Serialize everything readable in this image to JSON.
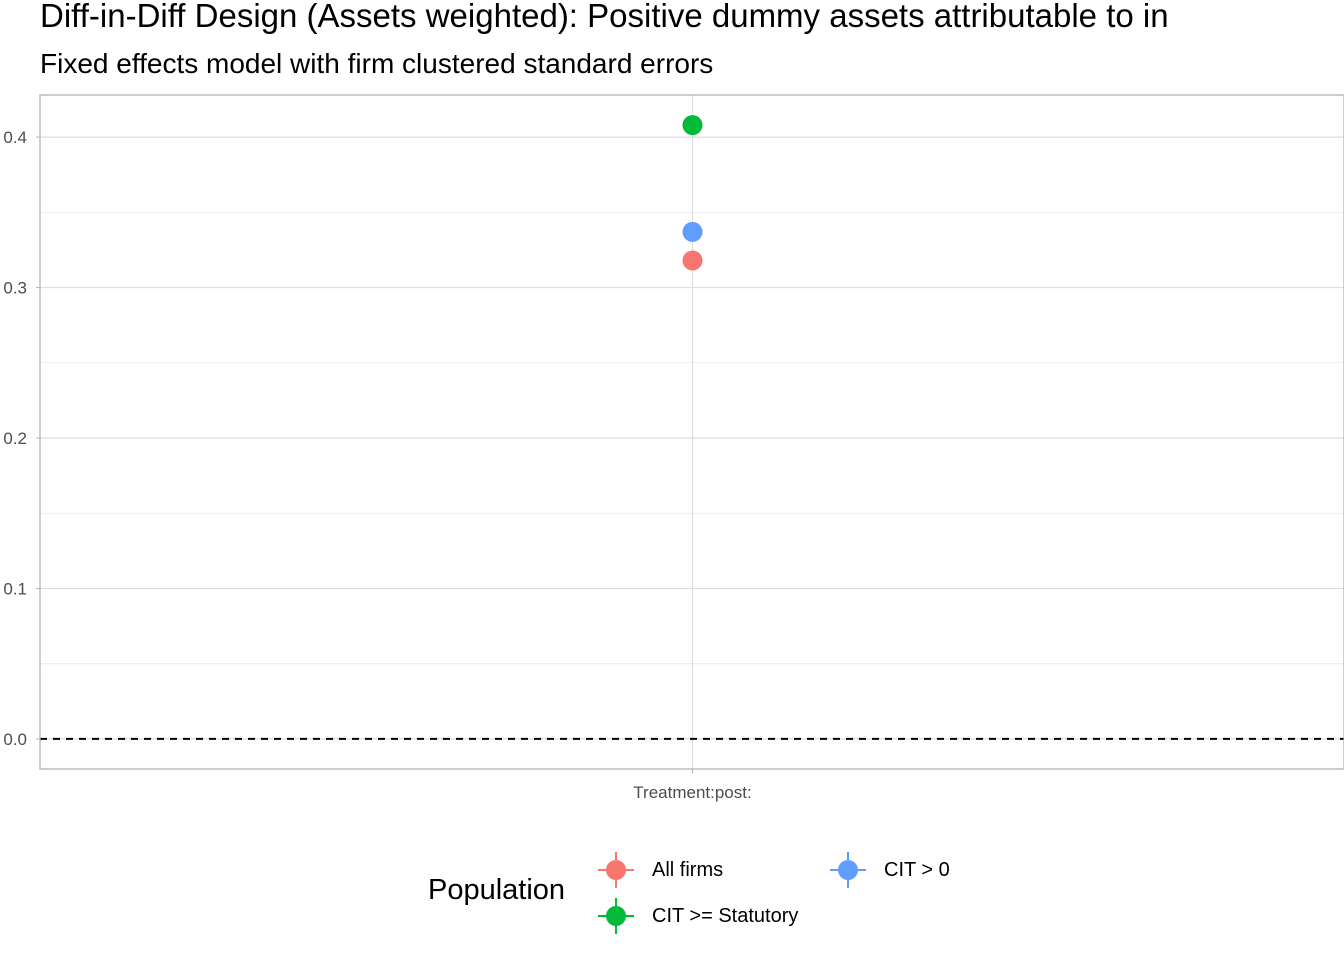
{
  "chart_data": {
    "type": "scatter",
    "title": "Diff-in-Diff Design (Assets weighted): Positive dummy assets attributable to in",
    "subtitle": "Fixed effects model with firm clustered standard errors",
    "xlabel": "",
    "ylabel": "",
    "categories": [
      "Treatment:post:"
    ],
    "ylim": [
      -0.02,
      0.428
    ],
    "y_ticks": [
      "0.0",
      "0.1",
      "0.2",
      "0.3",
      "0.4"
    ],
    "y_tick_values": [
      0.0,
      0.1,
      0.2,
      0.3,
      0.4
    ],
    "reference_line": {
      "y": 0,
      "style": "dashed",
      "color": "#000000"
    },
    "grid": true,
    "legend": {
      "title": "Population",
      "position": "bottom"
    },
    "series": [
      {
        "name": "All firms",
        "color": "#F8766D",
        "values": [
          0.318
        ]
      },
      {
        "name": "CIT >= Statutory",
        "color": "#00BA38",
        "values": [
          0.408
        ]
      },
      {
        "name": "CIT > 0",
        "color": "#619CFF",
        "values": [
          0.337
        ]
      }
    ]
  }
}
